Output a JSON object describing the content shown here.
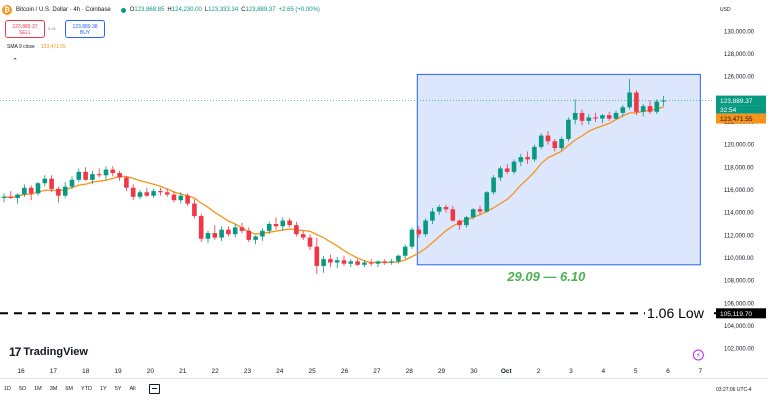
{
  "header": {
    "symbol": "Bitcoin / U.S. Dollar · 4h · Coinbase",
    "ohlc": [
      {
        "key": "O",
        "value": "123,868.85"
      },
      {
        "key": "H",
        "value": "124,230.00"
      },
      {
        "key": "L",
        "value": "123,333.34"
      },
      {
        "key": "C",
        "value": "123,889.37"
      }
    ],
    "change": "+2.65 (+0.00%)",
    "currency": "USD"
  },
  "trade": {
    "sell_price": "123,889.37",
    "sell_label": "SELL",
    "spread": "0.01",
    "buy_price": "123,889.38",
    "buy_label": "BUY"
  },
  "indicator": {
    "label": "SMA 9 close",
    "value": "123,471.55"
  },
  "logo": {
    "mark": "17",
    "text": "TradingView"
  },
  "timeframes": [
    "1D",
    "5D",
    "1M",
    "3M",
    "6M",
    "YTD",
    "1Y",
    "5Y",
    "All"
  ],
  "clock": "03:27:06 UTC-4",
  "colors": {
    "up": "#089981",
    "down": "#f23645",
    "sma": "#f7931a",
    "range_fill": "#d6e2fb",
    "range_border": "#2962ff",
    "annotation": "#4caf50",
    "price_label": "#089981"
  },
  "chart_data": {
    "type": "candlestick",
    "y_axis_labels": [
      "130,000.00",
      "128,000.00",
      "126,000.00",
      "124,000.00",
      "122,000.00",
      "120,000.00",
      "118,000.00",
      "116,000.00",
      "114,000.00",
      "112,000.00",
      "110,000.00",
      "108,000.00",
      "106,000.00",
      "104,000.00",
      "102,000.00"
    ],
    "ylim": [
      101000,
      131000
    ],
    "x_axis_labels": [
      "16",
      "17",
      "18",
      "19",
      "20",
      "21",
      "22",
      "23",
      "24",
      "25",
      "26",
      "27",
      "28",
      "29",
      "30",
      "Oct",
      "2",
      "3",
      "4",
      "5",
      "6",
      "7"
    ],
    "x_range": [
      15.5,
      37.5
    ],
    "candles_ohlc": [
      [
        115300,
        115700,
        114900,
        115400
      ],
      [
        115400,
        115900,
        115200,
        115300
      ],
      [
        115300,
        115700,
        114800,
        115600
      ],
      [
        115600,
        116500,
        115400,
        116200
      ],
      [
        116200,
        116400,
        115100,
        115700
      ],
      [
        115700,
        116700,
        115500,
        116600
      ],
      [
        116600,
        117300,
        116300,
        117000
      ],
      [
        117000,
        117300,
        115800,
        116100
      ],
      [
        116100,
        116300,
        114900,
        115500
      ],
      [
        115500,
        116700,
        115300,
        116300
      ],
      [
        116300,
        117200,
        116100,
        116900
      ],
      [
        116900,
        117900,
        116700,
        117600
      ],
      [
        117600,
        118000,
        116800,
        116900
      ],
      [
        116900,
        117700,
        116500,
        117400
      ],
      [
        117400,
        117900,
        117100,
        117300
      ],
      [
        117300,
        118100,
        116900,
        117800
      ],
      [
        117800,
        118100,
        117200,
        117500
      ],
      [
        117500,
        117700,
        116800,
        117100
      ],
      [
        117100,
        117200,
        115900,
        116200
      ],
      [
        116200,
        116500,
        115100,
        115400
      ],
      [
        115400,
        116000,
        115200,
        115800
      ],
      [
        115800,
        116200,
        115400,
        115500
      ],
      [
        115500,
        116100,
        115300,
        115900
      ],
      [
        115900,
        116200,
        115500,
        115800
      ],
      [
        115800,
        116100,
        115400,
        115600
      ],
      [
        115600,
        115900,
        114900,
        115100
      ],
      [
        115100,
        115800,
        114800,
        115500
      ],
      [
        115500,
        115700,
        114600,
        114800
      ],
      [
        114800,
        115200,
        113500,
        113700
      ],
      [
        113700,
        113900,
        111400,
        111700
      ],
      [
        111700,
        112400,
        111300,
        112200
      ],
      [
        112200,
        112900,
        111600,
        111800
      ],
      [
        111800,
        112800,
        111500,
        112500
      ],
      [
        112500,
        112800,
        111900,
        112100
      ],
      [
        112100,
        113000,
        111800,
        112700
      ],
      [
        112700,
        113100,
        112200,
        112400
      ],
      [
        112400,
        112700,
        111400,
        111600
      ],
      [
        111600,
        112000,
        111200,
        111900
      ],
      [
        111900,
        112600,
        111500,
        112400
      ],
      [
        112400,
        113200,
        112100,
        113000
      ],
      [
        113000,
        113600,
        112500,
        112800
      ],
      [
        112800,
        113600,
        112400,
        113300
      ],
      [
        113300,
        113500,
        112700,
        112900
      ],
      [
        112900,
        113200,
        111900,
        112100
      ],
      [
        112100,
        112400,
        111600,
        111800
      ],
      [
        111800,
        112100,
        110700,
        111000
      ],
      [
        111000,
        111800,
        108600,
        109300
      ],
      [
        109300,
        110200,
        108700,
        109900
      ],
      [
        109900,
        110300,
        109200,
        109600
      ],
      [
        109600,
        110100,
        109100,
        109800
      ],
      [
        109800,
        110200,
        109300,
        109500
      ],
      [
        109500,
        109900,
        109200,
        109700
      ],
      [
        109700,
        109900,
        109300,
        109400
      ],
      [
        109400,
        109800,
        109200,
        109600
      ],
      [
        109600,
        109900,
        109300,
        109500
      ],
      [
        109500,
        109800,
        109200,
        109700
      ],
      [
        109700,
        109900,
        109400,
        109600
      ],
      [
        109600,
        109900,
        109400,
        109700
      ],
      [
        109700,
        110300,
        109500,
        110200
      ],
      [
        110200,
        111200,
        109900,
        111000
      ],
      [
        111000,
        112700,
        110800,
        112500
      ],
      [
        112500,
        112800,
        111800,
        112100
      ],
      [
        112100,
        113500,
        111900,
        113300
      ],
      [
        113300,
        114400,
        113000,
        114100
      ],
      [
        114100,
        114700,
        113800,
        114500
      ],
      [
        114500,
        114700,
        114000,
        114300
      ],
      [
        114300,
        114600,
        113200,
        113300
      ],
      [
        113300,
        113400,
        112500,
        112900
      ],
      [
        112900,
        113700,
        112700,
        113600
      ],
      [
        113600,
        114400,
        113400,
        114300
      ],
      [
        114300,
        114600,
        113800,
        114100
      ],
      [
        114100,
        115900,
        114000,
        115800
      ],
      [
        115800,
        117300,
        115600,
        117100
      ],
      [
        117100,
        118100,
        116800,
        117900
      ],
      [
        117900,
        118300,
        117400,
        117600
      ],
      [
        117600,
        118700,
        117400,
        118500
      ],
      [
        118500,
        119200,
        118100,
        118900
      ],
      [
        118900,
        119400,
        118300,
        118700
      ],
      [
        118700,
        120000,
        118500,
        119800
      ],
      [
        119800,
        121000,
        119600,
        120800
      ],
      [
        120800,
        121200,
        120000,
        120300
      ],
      [
        120300,
        120500,
        119400,
        119700
      ],
      [
        119700,
        120700,
        119500,
        120500
      ],
      [
        120500,
        122400,
        120300,
        122200
      ],
      [
        122200,
        124000,
        121800,
        122800
      ],
      [
        122800,
        123100,
        121700,
        122100
      ],
      [
        122100,
        122700,
        121800,
        122400
      ],
      [
        122400,
        122800,
        122000,
        122300
      ],
      [
        122300,
        122700,
        121900,
        122600
      ],
      [
        122600,
        122900,
        122100,
        122300
      ],
      [
        122300,
        123000,
        122200,
        122800
      ],
      [
        122800,
        123500,
        122500,
        123300
      ],
      [
        123300,
        125800,
        123100,
        124600
      ],
      [
        124600,
        124800,
        122600,
        122900
      ],
      [
        122900,
        123600,
        122500,
        123400
      ],
      [
        123400,
        123900,
        122700,
        122900
      ],
      [
        122900,
        124000,
        122700,
        123800
      ],
      [
        123800,
        124300,
        123400,
        123900
      ]
    ],
    "sma_period": 9,
    "sma_label": "SMA 9 close",
    "sma_last": "123,471.55",
    "last_price": "123,889.37",
    "last_price_countdown": "32:54",
    "date_range_annotation": "29.09 — 6.10",
    "date_range_box": {
      "x_start": 28.25,
      "x_end": 37,
      "y_low": 109400,
      "y_high": 126200
    },
    "low_line_label": "1.06 Low",
    "low_line_price": "105,119.70",
    "low_line_value": 105119.7,
    "last_price_line": 123889.37
  }
}
